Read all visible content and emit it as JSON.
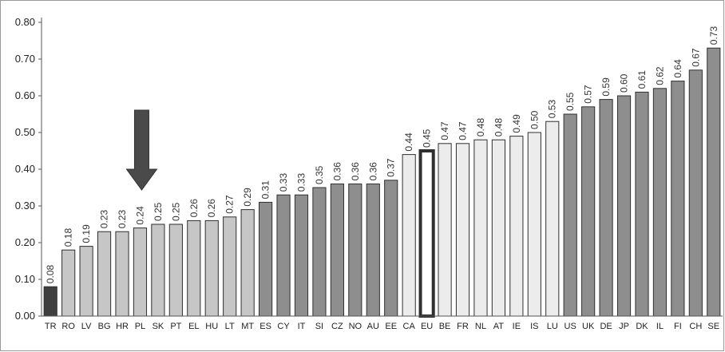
{
  "chart_data": {
    "type": "bar",
    "title": "",
    "xlabel": "",
    "ylabel": "",
    "ylim": [
      0,
      0.8
    ],
    "yticks": [
      "0.00",
      "0.10",
      "0.20",
      "0.30",
      "0.40",
      "0.50",
      "0.60",
      "0.70",
      "0.80"
    ],
    "grid": false,
    "legend": "none",
    "categories": [
      "TR",
      "RO",
      "LV",
      "BG",
      "HR",
      "PL",
      "SK",
      "PT",
      "EL",
      "HU",
      "LT",
      "MT",
      "ES",
      "CY",
      "IT",
      "SI",
      "CZ",
      "NO",
      "AU",
      "EE",
      "CA",
      "EU",
      "BE",
      "FR",
      "NL",
      "AT",
      "IE",
      "IS",
      "LU",
      "US",
      "UK",
      "DE",
      "JP",
      "DK",
      "IL",
      "FI",
      "CH",
      "SE"
    ],
    "values": [
      0.08,
      0.18,
      0.19,
      0.23,
      0.23,
      0.24,
      0.25,
      0.25,
      0.26,
      0.26,
      0.27,
      0.29,
      0.31,
      0.33,
      0.33,
      0.35,
      0.36,
      0.36,
      0.36,
      0.37,
      0.44,
      0.45,
      0.47,
      0.47,
      0.48,
      0.48,
      0.49,
      0.5,
      0.53,
      0.55,
      0.57,
      0.59,
      0.6,
      0.61,
      0.62,
      0.64,
      0.67,
      0.73
    ],
    "value_labels": [
      "0.08",
      "0.18",
      "0.19",
      "0.23",
      "0.23",
      "0.24",
      "0.25",
      "0.25",
      "0.26",
      "0.26",
      "0.27",
      "0.29",
      "0.31",
      "0.33",
      "0.33",
      "0.35",
      "0.36",
      "0.36",
      "0.36",
      "0.37",
      "0.44",
      "0.45",
      "0.47",
      "0.47",
      "0.48",
      "0.48",
      "0.49",
      "0.50",
      "0.53",
      "0.55",
      "0.57",
      "0.59",
      "0.60",
      "0.61",
      "0.62",
      "0.64",
      "0.67",
      "0.73"
    ],
    "bar_groups": [
      "dark",
      "light",
      "light",
      "light",
      "light",
      "light",
      "light",
      "light",
      "light",
      "light",
      "light",
      "light",
      "medium",
      "medium",
      "medium",
      "medium",
      "medium",
      "medium",
      "medium",
      "medium",
      "lighter",
      "outlined",
      "lighter",
      "lighter",
      "lighter",
      "lighter",
      "lighter",
      "lighter",
      "lighter",
      "medium",
      "medium",
      "medium",
      "medium",
      "medium",
      "medium",
      "medium",
      "medium",
      "medium"
    ],
    "highlight": {
      "category": "PL",
      "marker": "down-arrow"
    },
    "colors": {
      "dark": "#3f3f3f",
      "light": "#c6c6c6",
      "medium": "#8e8e8e",
      "lighter": "#ececec",
      "outlined": "#ffffff",
      "bar_stroke": "#2f2f2f",
      "arrow": "#4a4a4a",
      "axis": "#555555"
    }
  }
}
